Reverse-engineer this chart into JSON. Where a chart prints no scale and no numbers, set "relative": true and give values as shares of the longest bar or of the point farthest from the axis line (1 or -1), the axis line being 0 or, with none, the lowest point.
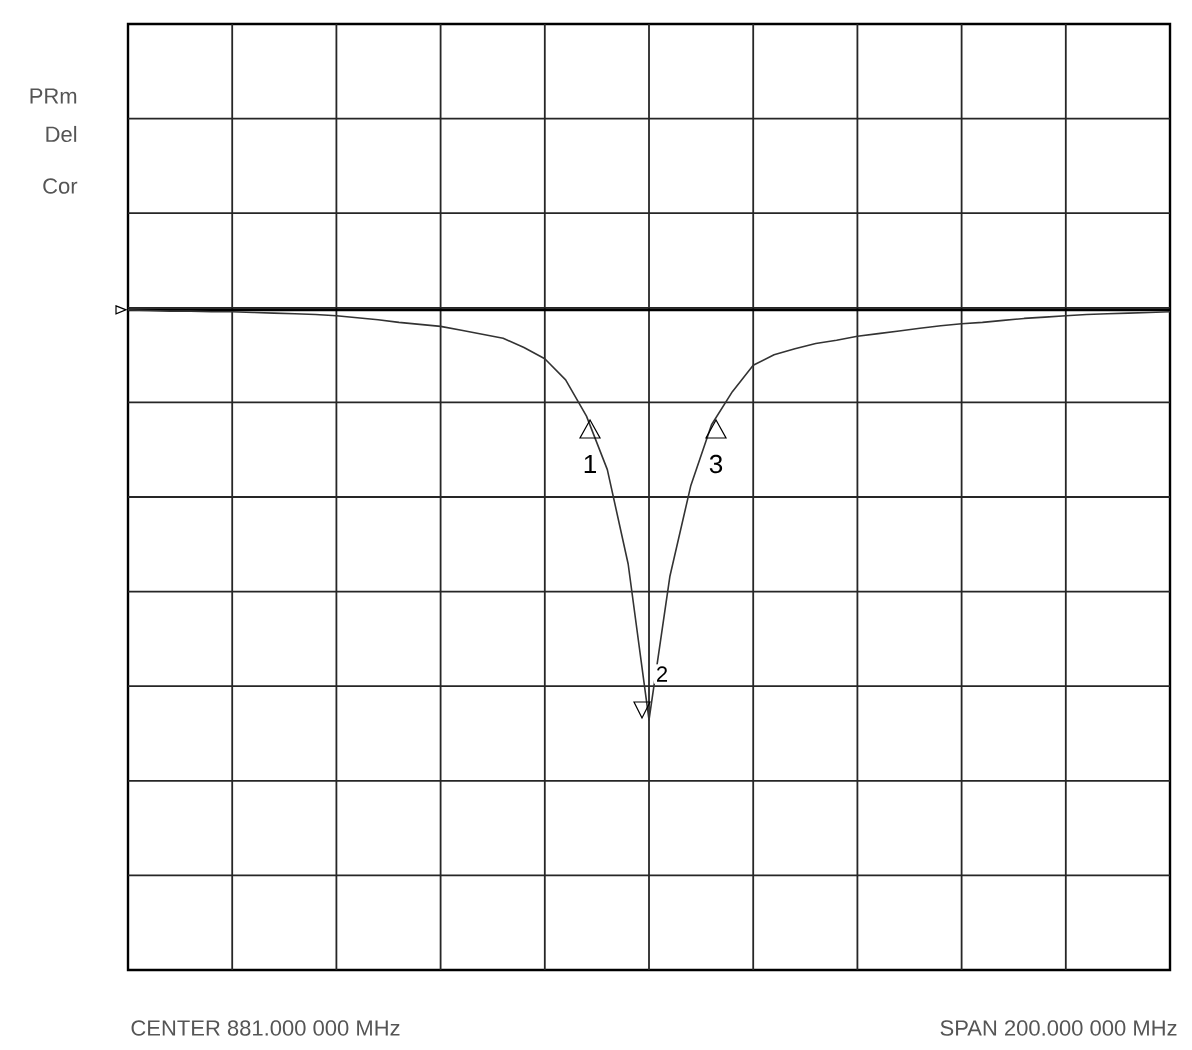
{
  "chart_data": {
    "type": "line",
    "relative": true,
    "categories": [
      null,
      null,
      null,
      null,
      null,
      null,
      null,
      null,
      null,
      null,
      null,
      null,
      null,
      null,
      null,
      null,
      null,
      null,
      null,
      null,
      null,
      null,
      null,
      null,
      null,
      null,
      null,
      null,
      null,
      null,
      null,
      null,
      null,
      null,
      null,
      null,
      null,
      null,
      null,
      null,
      null,
      null,
      null,
      null,
      null,
      null,
      null,
      null,
      null,
      null,
      null
    ],
    "series": [
      {
        "color": "#333333",
        "values": [
          1.0,
          0.999,
          0.998,
          0.998,
          0.997,
          0.997,
          0.996,
          0.995,
          0.994,
          0.993,
          0.991,
          0.988,
          0.985,
          0.981,
          0.978,
          0.975,
          0.969,
          0.963,
          0.957,
          0.943,
          0.926,
          0.894,
          0.839,
          0.758,
          0.615,
          0.379,
          0.596,
          0.733,
          0.826,
          0.876,
          0.916,
          0.932,
          0.941,
          0.949,
          0.954,
          0.96,
          0.964,
          0.968,
          0.972,
          0.976,
          0.979,
          0.981,
          0.984,
          0.987,
          0.989,
          0.991,
          0.993,
          0.994,
          0.995,
          0.996,
          0.997
        ]
      }
    ],
    "grid": true,
    "marker": "none",
    "line_style": "solid",
    "ref_lines": [
      {
        "axis": "y",
        "value": 1.0,
        "color": "#000000"
      }
    ],
    "annotations": [
      "PRm",
      "Del",
      "Cor",
      "CENTER 881.000 000 MHz",
      "SPAN 200.000 000 MHz",
      "1",
      "2",
      "3"
    ]
  }
}
